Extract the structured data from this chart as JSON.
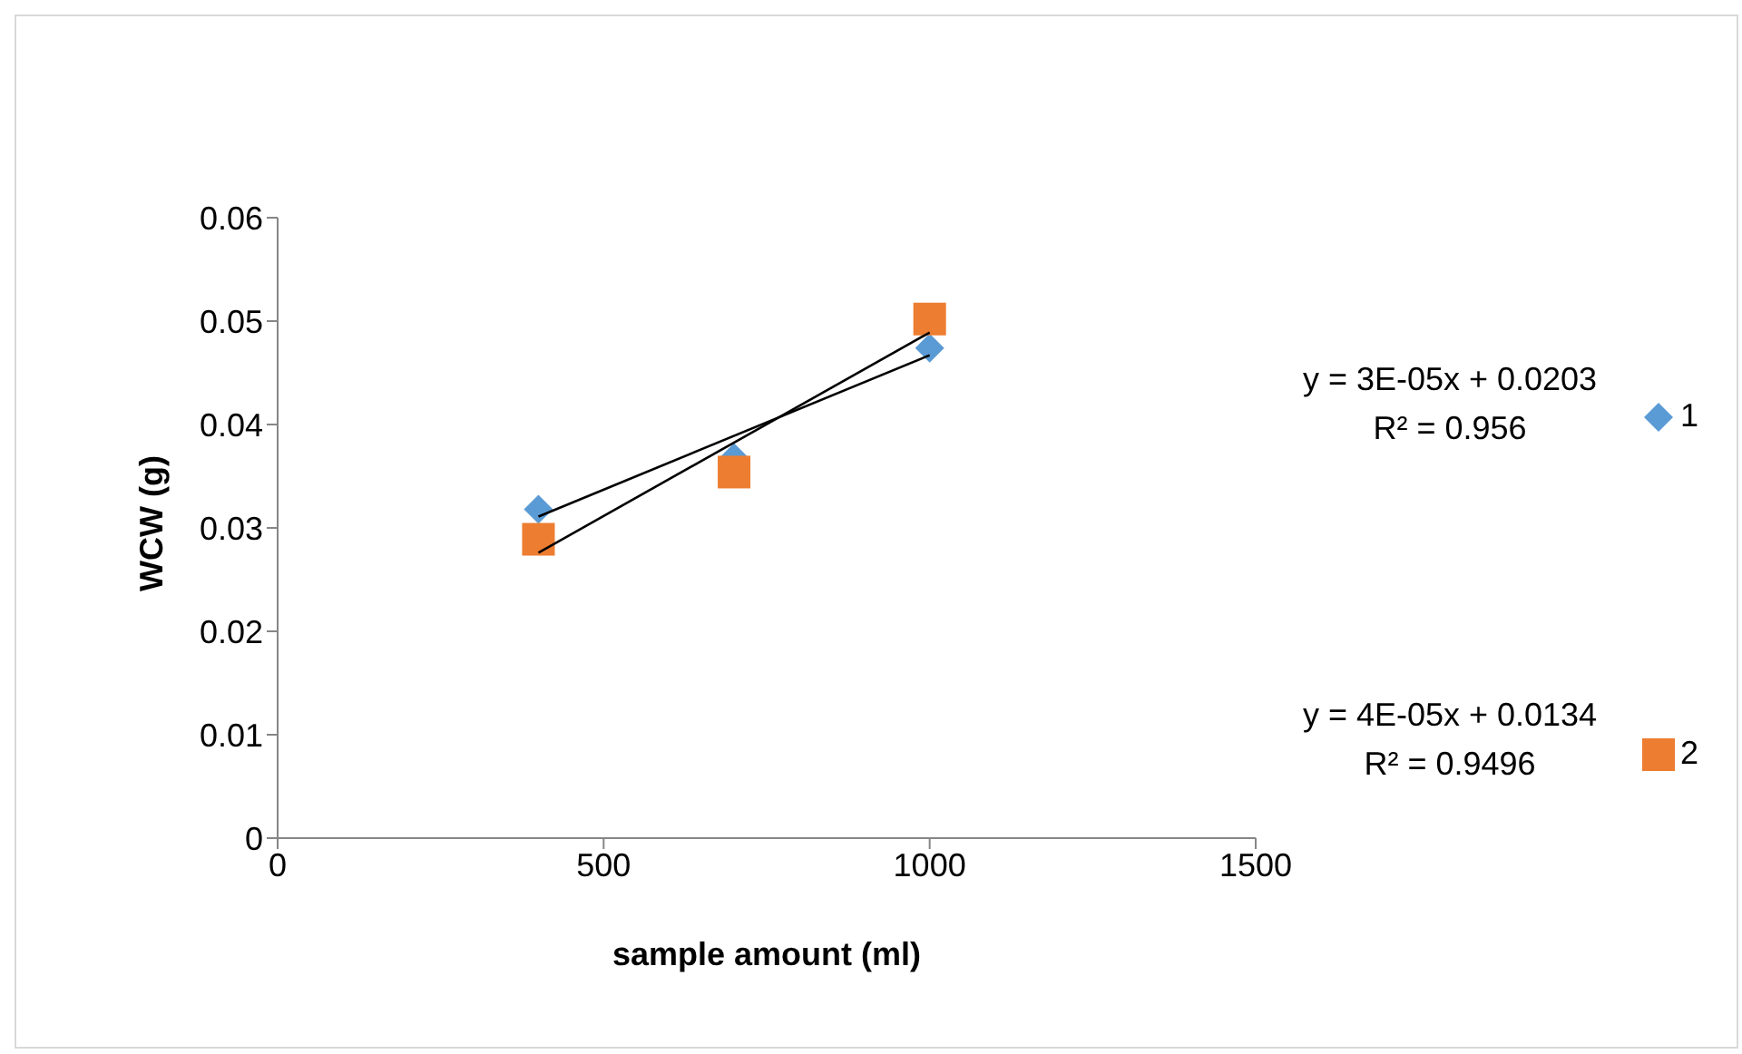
{
  "chart_data": {
    "type": "scatter",
    "xlabel": "sample amount (ml)",
    "ylabel": "WCW (g)",
    "xlim": [
      0,
      1500
    ],
    "xticks": [
      0,
      500,
      1000,
      1500
    ],
    "ylim": [
      0,
      0.06
    ],
    "yticks": [
      0,
      0.01,
      0.02,
      0.03,
      0.04,
      0.05,
      0.06
    ],
    "grid": false,
    "legend": "right",
    "series": [
      {
        "name": "1",
        "marker": "diamond",
        "color": "#5b9bd5",
        "x": [
          400,
          700,
          1000
        ],
        "values": [
          0.0318,
          0.0368,
          0.0474
        ]
      },
      {
        "name": "2",
        "marker": "square",
        "color": "#ed7d31",
        "x": [
          400,
          700,
          1000
        ],
        "values": [
          0.0289,
          0.0354,
          0.0502
        ]
      },
      {
        "type": "line",
        "marker": "none",
        "color": "#000000",
        "x": [
          400,
          1000
        ],
        "values": [
          0.0311,
          0.0467
        ]
      },
      {
        "type": "line",
        "marker": "none",
        "color": "#000000",
        "x": [
          400,
          1000
        ],
        "values": [
          0.0276,
          0.0489
        ]
      }
    ],
    "annotations": [
      "y = 3E-05x + 0.0203",
      "R² = 0.956",
      "y = 4E-05x + 0.0134",
      "R² = 0.9496"
    ]
  }
}
